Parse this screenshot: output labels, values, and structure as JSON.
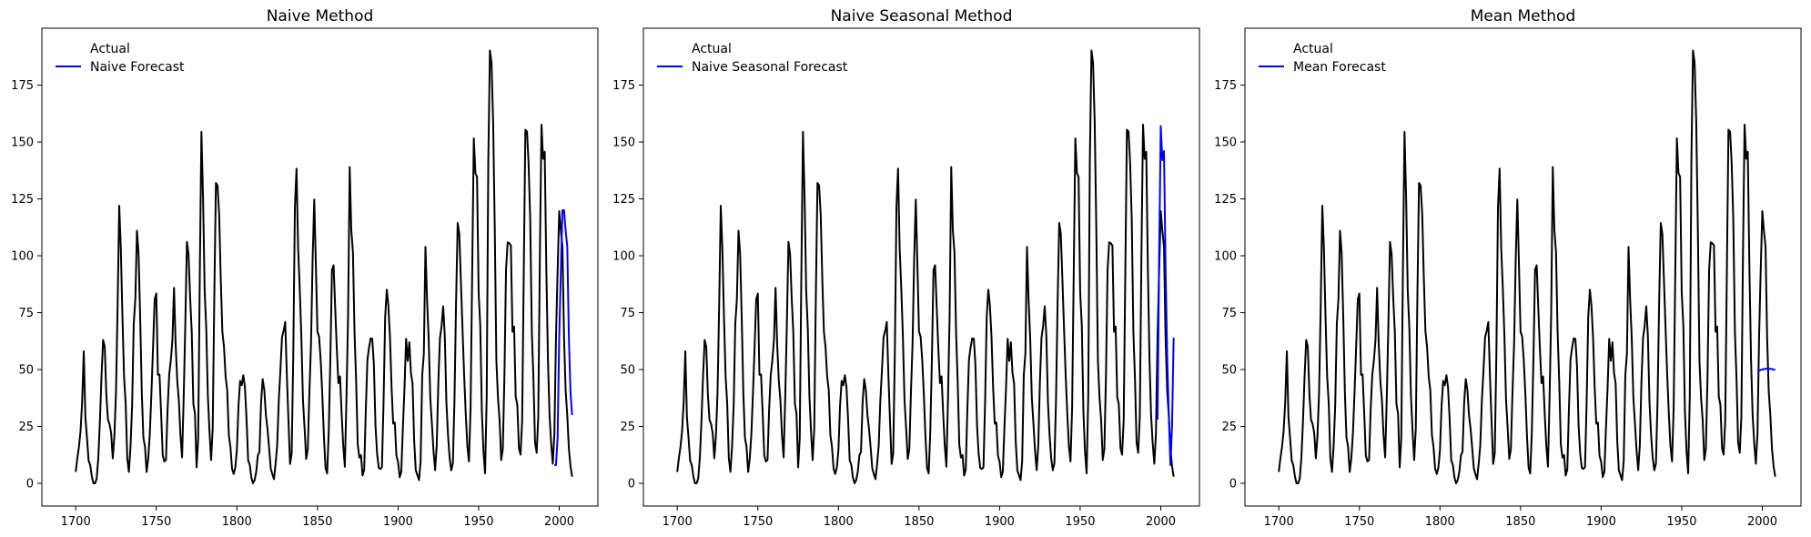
{
  "colors": {
    "actual": "#000000",
    "forecast": "#0000ff"
  },
  "chart_data": [
    {
      "type": "line",
      "title": "Naive Method",
      "xlim": [
        1679,
        2024
      ],
      "ylim": [
        -10,
        200
      ],
      "xticks": [
        1700,
        1750,
        1800,
        1850,
        1900,
        1950,
        2000
      ],
      "yticks": [
        0,
        25,
        50,
        75,
        100,
        125,
        150,
        175
      ],
      "legend": "upper-left",
      "series": [
        {
          "name": "Actual",
          "role": "actual",
          "ref": "actual"
        },
        {
          "name": "Naive Forecast",
          "role": "forecast",
          "x": [
            1997,
            1998,
            1999,
            2000,
            2001,
            2002,
            2003,
            2004,
            2005,
            2006,
            2007,
            2008
          ],
          "y": [
            8,
            8,
            20,
            64,
            93,
            120,
            120,
            111,
            104,
            64,
            40,
            30
          ]
        }
      ]
    },
    {
      "type": "line",
      "title": "Naive Seasonal Method",
      "xlim": [
        1679,
        2024
      ],
      "ylim": [
        -10,
        200
      ],
      "xticks": [
        1700,
        1750,
        1800,
        1850,
        1900,
        1950,
        2000
      ],
      "yticks": [
        0,
        25,
        50,
        75,
        100,
        125,
        150,
        175
      ],
      "legend": "upper-left",
      "series": [
        {
          "name": "Actual",
          "role": "actual",
          "ref": "actual"
        },
        {
          "name": "Naive Seasonal Forecast",
          "role": "forecast",
          "x": [
            1998,
            1999,
            2000,
            2001,
            2002,
            2003,
            2004,
            2005,
            2006,
            2007,
            2008
          ],
          "y": [
            28,
            100,
            157,
            142,
            146,
            94,
            55,
            30,
            8,
            25,
            64
          ]
        }
      ]
    },
    {
      "type": "line",
      "title": "Mean Method",
      "xlim": [
        1679,
        2024
      ],
      "ylim": [
        -10,
        200
      ],
      "xticks": [
        1700,
        1750,
        1800,
        1850,
        1900,
        1950,
        2000
      ],
      "yticks": [
        0,
        25,
        50,
        75,
        100,
        125,
        150,
        175
      ],
      "legend": "upper-left",
      "series": [
        {
          "name": "Actual",
          "role": "actual",
          "ref": "actual"
        },
        {
          "name": "Mean Forecast",
          "role": "forecast",
          "x": [
            1997,
            1998,
            1999,
            2000,
            2001,
            2002,
            2003,
            2004,
            2005,
            2006,
            2007,
            2008
          ],
          "y": [
            49.5,
            49.6,
            49.8,
            50.0,
            50.2,
            50.3,
            50.4,
            50.4,
            50.3,
            50.2,
            50.0,
            49.9
          ]
        }
      ]
    }
  ],
  "actual_series": {
    "x_start": 1700,
    "y": [
      5,
      11,
      16,
      23,
      36,
      58,
      29,
      20,
      10,
      8,
      3,
      0,
      0,
      2,
      11,
      27,
      47,
      63,
      60,
      39,
      28,
      26,
      22,
      11,
      21,
      40,
      78,
      122,
      103,
      73,
      47,
      35,
      11,
      5,
      16,
      34,
      70,
      81,
      111,
      101,
      73,
      40,
      20,
      16,
      5,
      11,
      22,
      40,
      60,
      80.9,
      83.4,
      47.7,
      47.8,
      30.7,
      12.2,
      9.6,
      10.2,
      32.4,
      47.6,
      54,
      62.9,
      85.9,
      61.2,
      45.1,
      36.4,
      20.9,
      11.4,
      37.8,
      69.8,
      106.1,
      100.8,
      81.6,
      66.5,
      34.8,
      30.6,
      7,
      19.8,
      92.5,
      154.4,
      125.9,
      84.8,
      68.1,
      38.5,
      22.8,
      10.2,
      24.1,
      82.9,
      132,
      130.9,
      118.1,
      89.9,
      66.6,
      60,
      46.9,
      41,
      21.3,
      16,
      6.4,
      4.1,
      6.8,
      14.5,
      34,
      45,
      43.1,
      47.5,
      42.2,
      28.1,
      10.1,
      8.1,
      2.5,
      0,
      1.4,
      5,
      12.2,
      13.9,
      35.4,
      45.8,
      41.1,
      30.1,
      23.9,
      15.6,
      6.6,
      4,
      1.8,
      8.5,
      16.6,
      36.3,
      49.6,
      64.2,
      67,
      70.9,
      47.8,
      27.5,
      8.5,
      13.2,
      56.9,
      121.5,
      138.3,
      103.2,
      85.7,
      64.6,
      36.7,
      24.2,
      10.7,
      15,
      40.1,
      61.5,
      98.5,
      124.7,
      96.3,
      66.6,
      64.5,
      54.1,
      39,
      20.6,
      6.7,
      4.3,
      22.7,
      54.8,
      93.8,
      95.8,
      77.2,
      59.1,
      44,
      47,
      30.5,
      16.3,
      7.3,
      37.6,
      74,
      139,
      111.2,
      101.6,
      66.2,
      44.7,
      17,
      11.3,
      12.4,
      3.4,
      6,
      32.3,
      54.3,
      59.7,
      63.7,
      63.5,
      52.2,
      25.4,
      13.1,
      6.8,
      6.3,
      7.1,
      35.6,
      73,
      85.1,
      78,
      64,
      41.8,
      26.2,
      26.7,
      12.1,
      9.5,
      2.7,
      5,
      24.4,
      42,
      63.5,
      53.8,
      62,
      48.5,
      43.9,
      18.6,
      5.7,
      3.6,
      1.4,
      9.6,
      47.4,
      57.1,
      103.9,
      80.6,
      63.6,
      37.6,
      26.1,
      14.2,
      5.8,
      16.7,
      44.3,
      63.9,
      69,
      77.8,
      64.9,
      35.7,
      21.2,
      11.1,
      5.7,
      8.7,
      36.1,
      79.7,
      114.4,
      109.6,
      88.8,
      67.8,
      47.5,
      30.6,
      16.3,
      9.6,
      33.2,
      92.6,
      151.6,
      136.3,
      134.7,
      83.9,
      69.4,
      31.5,
      13.9,
      4.4,
      38,
      141.7,
      190.2,
      184.8,
      159,
      112.3,
      53.9,
      37.6,
      27.9,
      10.2,
      15.1,
      47,
      93.8,
      105.9,
      105.5,
      104.5,
      66.6,
      68.9,
      38,
      34.5,
      15.5,
      12.6,
      27.5,
      92.5,
      155.4,
      154.6,
      140.4,
      115.9,
      66.6,
      45.9,
      17.9,
      13.4,
      29.2,
      100.2,
      157.6,
      142.6,
      145.7,
      94.3,
      54.6,
      29.9,
      17.5,
      8.6,
      21.5,
      64.3,
      93.3,
      119.6,
      111,
      104,
      63.7,
      40.4,
      29.8,
      15.2,
      7.5,
      2.9
    ]
  }
}
